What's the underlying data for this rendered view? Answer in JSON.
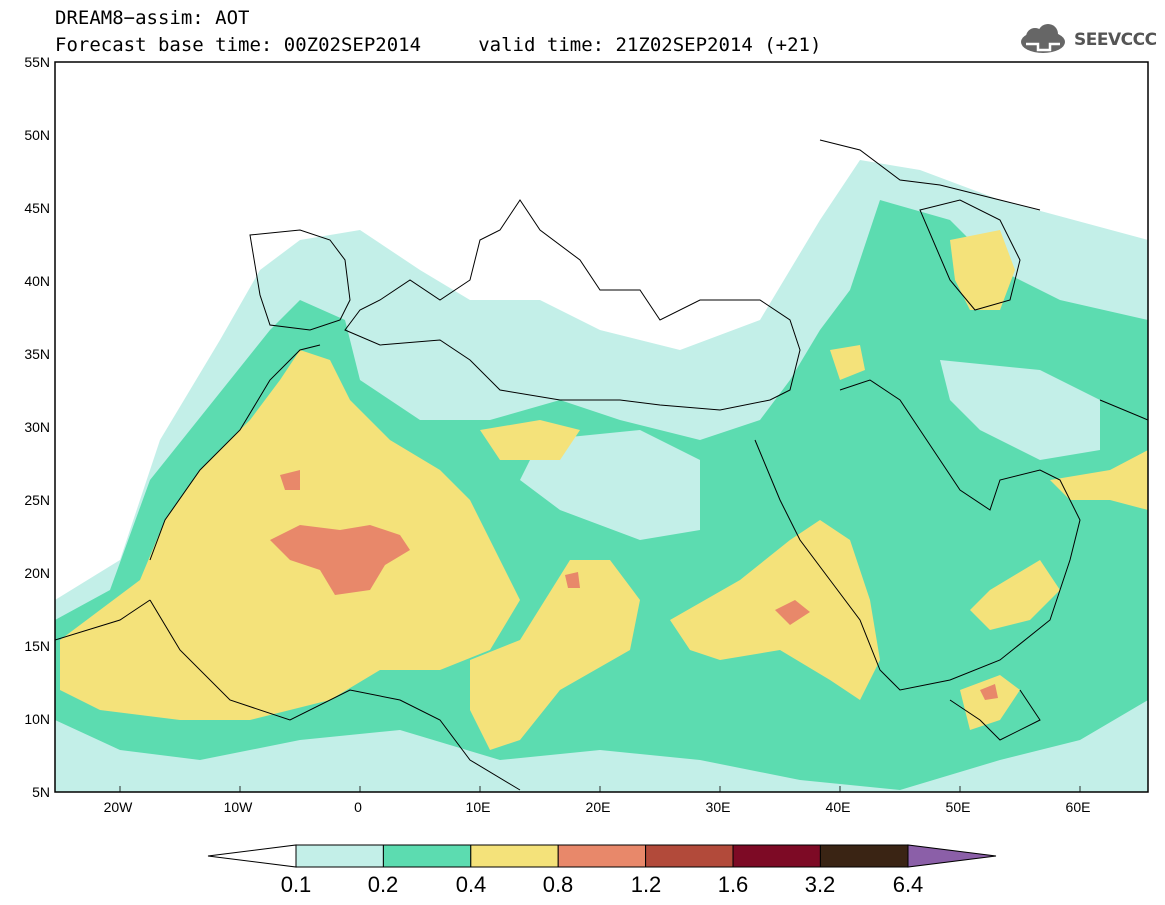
{
  "header": {
    "title_line1": "DREAM8−assim: AOT",
    "title_line2": "Forecast base time: 00Z02SEP2014     valid time: 21Z02SEP2014 (+21)",
    "logo_text": "SEEVCCC",
    "logo_icon": "cloud-logo-icon"
  },
  "map": {
    "lat_labels": [
      "55N",
      "50N",
      "45N",
      "40N",
      "35N",
      "30N",
      "25N",
      "20N",
      "15N",
      "10N",
      "5N"
    ],
    "lon_labels": [
      "20W",
      "10W",
      "0",
      "10E",
      "20E",
      "30E",
      "40E",
      "50E",
      "60E"
    ],
    "lon_range": [
      -25,
      65
    ],
    "lat_range": [
      5,
      55
    ]
  },
  "colorbar": {
    "labels": [
      "0.1",
      "0.2",
      "0.4",
      "0.8",
      "1.2",
      "1.6",
      "3.2",
      "6.4"
    ],
    "colors": [
      "#c3efe8",
      "#5cdcb0",
      "#f4e27a",
      "#e8886a",
      "#b24a3a",
      "#7d0a25",
      "#3a2414"
    ],
    "under_color": "#ffffff",
    "over_color": "#8b5fa8"
  }
}
